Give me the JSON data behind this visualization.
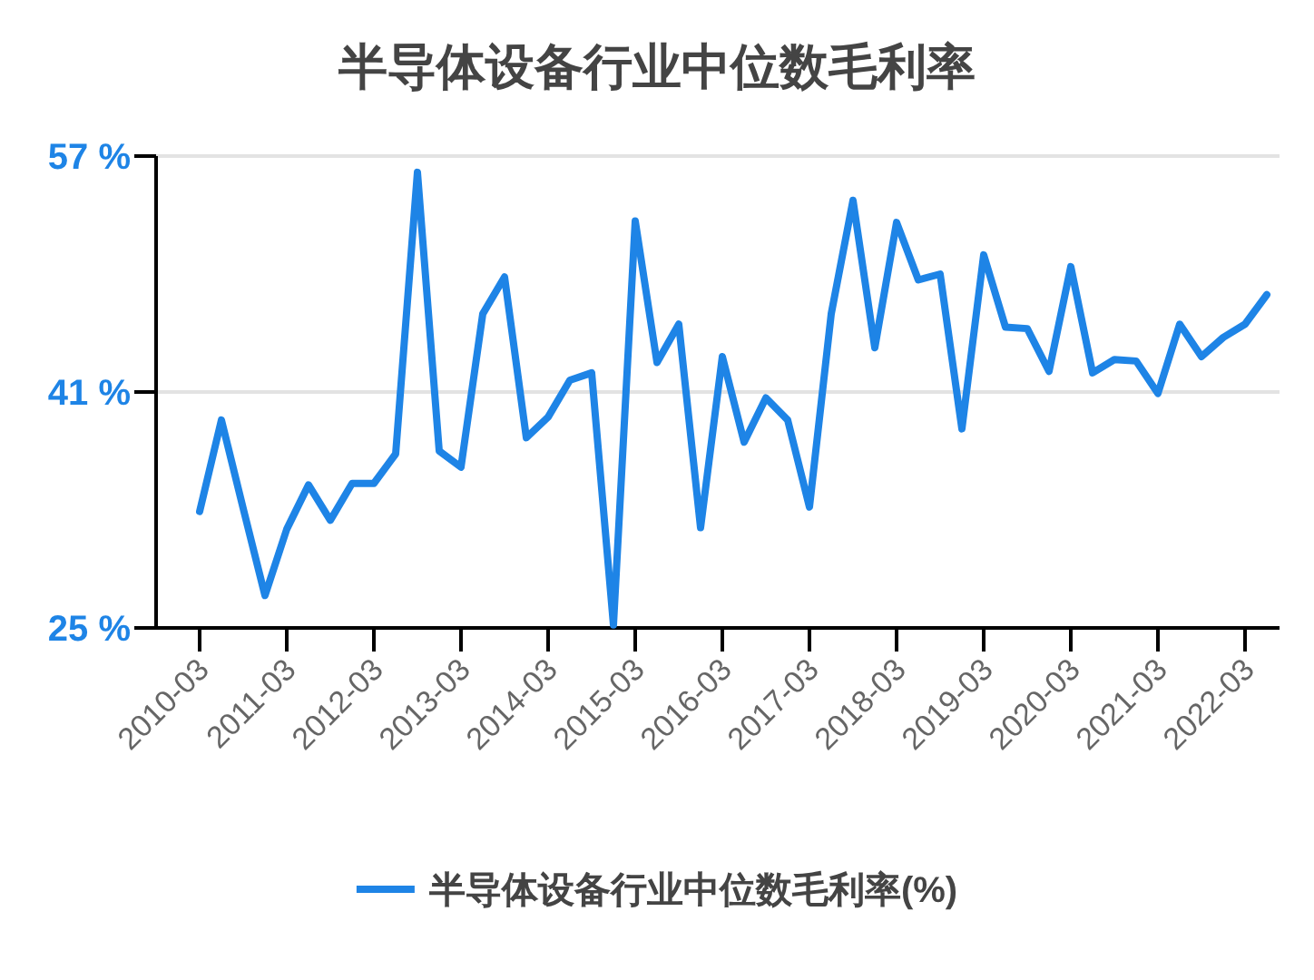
{
  "chart_data": {
    "type": "line",
    "title": "半导体设备行业中位数毛利率",
    "categories": [
      "2010-03",
      null,
      null,
      null,
      "2011-03",
      null,
      null,
      null,
      "2012-03",
      null,
      null,
      null,
      "2013-03",
      null,
      null,
      null,
      "2014-03",
      null,
      null,
      null,
      "2015-03",
      null,
      null,
      null,
      "2016-03",
      null,
      null,
      null,
      "2017-03",
      null,
      null,
      null,
      "2018-03",
      null,
      null,
      null,
      "2019-03",
      null,
      null,
      null,
      "2020-03",
      null,
      null,
      null,
      "2021-03",
      null,
      null,
      null,
      "2022-03",
      null
    ],
    "series": [
      {
        "name": "半导体设备行业中位数毛利率(%)",
        "color": "#1e84e6",
        "values": [
          32.9,
          39.1,
          33.1,
          27.2,
          31.7,
          34.7,
          32.3,
          34.8,
          34.8,
          36.8,
          55.9,
          37.0,
          35.9,
          46.3,
          48.8,
          37.9,
          39.3,
          41.8,
          42.3,
          25.2,
          52.6,
          43.0,
          45.6,
          31.8,
          43.4,
          37.6,
          40.6,
          39.1,
          33.2,
          46.3,
          54.0,
          44.0,
          52.5,
          48.6,
          49.0,
          38.5,
          50.3,
          45.4,
          45.3,
          42.4,
          49.5,
          42.3,
          43.2,
          43.1,
          40.9,
          45.6,
          43.4,
          44.7,
          45.6,
          47.6
        ]
      }
    ],
    "ylim": [
      25,
      57
    ],
    "yticks": [
      {
        "value": 25,
        "label": "25 %"
      },
      {
        "value": 41,
        "label": "41 %"
      },
      {
        "value": 57,
        "label": "57 %"
      }
    ],
    "grid": "y",
    "legend": "bottom",
    "marker": "none",
    "line_style": "solid"
  }
}
